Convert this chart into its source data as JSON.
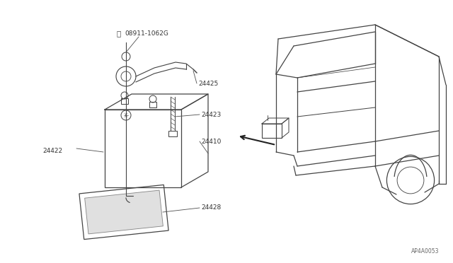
{
  "bg_color": "#ffffff",
  "line_color": "#444444",
  "lw": 0.9,
  "fig_number": "AP4A0053"
}
